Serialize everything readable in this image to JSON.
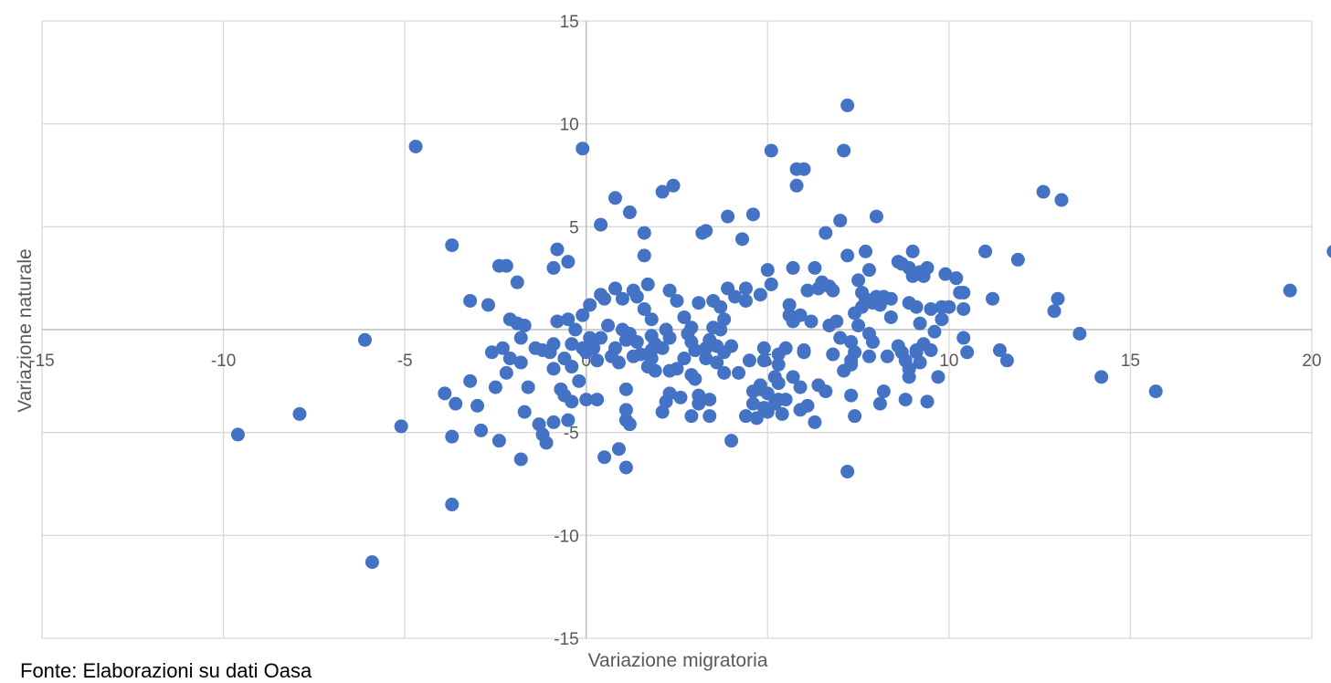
{
  "chart_data": {
    "type": "scatter",
    "xlabel": "Variazione migratoria",
    "ylabel": "Variazione  naturale",
    "xlim": [
      -15,
      20
    ],
    "ylim": [
      -15,
      15
    ],
    "x_ticks": [
      -15,
      -10,
      -5,
      0,
      5,
      10,
      15,
      20
    ],
    "y_ticks": [
      -15,
      -10,
      -5,
      0,
      5,
      10,
      15
    ],
    "grid": true,
    "marker_color": "#4472C4",
    "points": [
      [
        -9.6,
        -5.1
      ],
      [
        -7.9,
        -4.1
      ],
      [
        -6.1,
        -0.5
      ],
      [
        -5.9,
        -11.3
      ],
      [
        -5.1,
        -4.7
      ],
      [
        -4.7,
        8.9
      ],
      [
        -3.9,
        -3.1
      ],
      [
        -3.7,
        4.1
      ],
      [
        -3.7,
        -5.2
      ],
      [
        -3.7,
        -8.5
      ],
      [
        -3.6,
        -3.6
      ],
      [
        -3.2,
        -2.5
      ],
      [
        -3.2,
        1.4
      ],
      [
        -3.0,
        -3.7
      ],
      [
        -2.9,
        -4.9
      ],
      [
        -2.7,
        1.2
      ],
      [
        -2.6,
        -1.1
      ],
      [
        -2.5,
        -2.8
      ],
      [
        -2.4,
        -5.4
      ],
      [
        -2.4,
        3.1
      ],
      [
        -2.3,
        -0.9
      ],
      [
        -2.2,
        3.1
      ],
      [
        -2.2,
        -2.1
      ],
      [
        -2.1,
        0.5
      ],
      [
        -2.1,
        -1.4
      ],
      [
        -1.9,
        0.3
      ],
      [
        -1.8,
        -0.4
      ],
      [
        -1.9,
        2.3
      ],
      [
        -1.8,
        -1.6
      ],
      [
        -1.7,
        0.2
      ],
      [
        -1.8,
        -6.3
      ],
      [
        -1.7,
        -4.0
      ],
      [
        -1.6,
        -2.8
      ],
      [
        -1.4,
        -0.9
      ],
      [
        -1.3,
        -4.6
      ],
      [
        -1.2,
        -1.0
      ],
      [
        -1.2,
        -5.1
      ],
      [
        -1.1,
        -5.5
      ],
      [
        -1.0,
        -1.1
      ],
      [
        -0.9,
        -0.7
      ],
      [
        -0.9,
        -4.5
      ],
      [
        -0.9,
        3.0
      ],
      [
        -0.9,
        -1.9
      ],
      [
        -0.8,
        3.9
      ],
      [
        -0.8,
        0.4
      ],
      [
        -0.7,
        -2.9
      ],
      [
        -0.6,
        -1.4
      ],
      [
        -0.6,
        -3.2
      ],
      [
        -0.5,
        3.3
      ],
      [
        -0.5,
        -4.4
      ],
      [
        -0.5,
        0.5
      ],
      [
        -0.4,
        -0.7
      ],
      [
        -0.4,
        -1.8
      ],
      [
        -0.4,
        -3.5
      ],
      [
        -0.3,
        0.0
      ],
      [
        -0.2,
        -2.5
      ],
      [
        -0.1,
        -0.9
      ],
      [
        -0.1,
        0.7
      ],
      [
        -0.1,
        8.8
      ],
      [
        0.0,
        -3.4
      ],
      [
        0.0,
        -1.1
      ],
      [
        0.1,
        1.2
      ],
      [
        0.1,
        -0.4
      ],
      [
        0.2,
        -0.9
      ],
      [
        0.3,
        -1.5
      ],
      [
        0.3,
        -3.4
      ],
      [
        0.4,
        5.1
      ],
      [
        0.4,
        1.7
      ],
      [
        0.4,
        -0.4
      ],
      [
        0.5,
        -6.2
      ],
      [
        0.5,
        1.5
      ],
      [
        0.6,
        0.2
      ],
      [
        0.7,
        -1.3
      ],
      [
        0.8,
        -0.9
      ],
      [
        0.8,
        2.0
      ],
      [
        0.8,
        6.4
      ],
      [
        0.9,
        -5.8
      ],
      [
        0.9,
        -1.6
      ],
      [
        1.0,
        0.0
      ],
      [
        1.0,
        1.5
      ],
      [
        1.1,
        -4.4
      ],
      [
        1.1,
        -3.9
      ],
      [
        1.1,
        -2.9
      ],
      [
        1.1,
        -0.5
      ],
      [
        1.1,
        -6.7
      ],
      [
        1.2,
        -4.6
      ],
      [
        1.2,
        5.7
      ],
      [
        1.2,
        -0.2
      ],
      [
        1.3,
        1.9
      ],
      [
        1.3,
        -1.3
      ],
      [
        1.4,
        -0.6
      ],
      [
        1.4,
        1.6
      ],
      [
        1.5,
        -1.2
      ],
      [
        1.6,
        4.7
      ],
      [
        1.6,
        1.0
      ],
      [
        1.6,
        3.6
      ],
      [
        1.7,
        2.2
      ],
      [
        1.7,
        -1.8
      ],
      [
        1.8,
        -0.3
      ],
      [
        1.8,
        0.5
      ],
      [
        1.8,
        -1.0
      ],
      [
        1.8,
        -1.4
      ],
      [
        1.9,
        -2.0
      ],
      [
        1.9,
        -0.7
      ],
      [
        2.1,
        -0.9
      ],
      [
        2.1,
        -4.0
      ],
      [
        2.1,
        6.7
      ],
      [
        2.2,
        -3.5
      ],
      [
        2.2,
        0.0
      ],
      [
        2.3,
        -2.0
      ],
      [
        2.3,
        -0.4
      ],
      [
        2.3,
        1.9
      ],
      [
        2.3,
        -3.1
      ],
      [
        2.4,
        7.0
      ],
      [
        2.5,
        1.4
      ],
      [
        2.5,
        -1.9
      ],
      [
        2.6,
        -3.3
      ],
      [
        2.7,
        0.6
      ],
      [
        2.7,
        -1.4
      ],
      [
        2.8,
        -0.2
      ],
      [
        2.9,
        -4.2
      ],
      [
        2.9,
        -2.2
      ],
      [
        2.9,
        -0.6
      ],
      [
        2.9,
        0.1
      ],
      [
        3.0,
        -1.0
      ],
      [
        3.0,
        -2.4
      ],
      [
        3.1,
        -3.2
      ],
      [
        3.1,
        -3.6
      ],
      [
        3.1,
        1.3
      ],
      [
        3.2,
        4.7
      ],
      [
        3.3,
        4.8
      ],
      [
        3.3,
        -1.4
      ],
      [
        3.3,
        -0.9
      ],
      [
        3.4,
        -4.2
      ],
      [
        3.4,
        -3.4
      ],
      [
        3.4,
        -0.5
      ],
      [
        3.5,
        0.1
      ],
      [
        3.5,
        1.4
      ],
      [
        3.6,
        -1.6
      ],
      [
        3.6,
        -0.8
      ],
      [
        3.7,
        1.1
      ],
      [
        3.7,
        0.0
      ],
      [
        3.8,
        -2.1
      ],
      [
        3.8,
        -1.1
      ],
      [
        3.8,
        0.5
      ],
      [
        3.9,
        5.5
      ],
      [
        3.9,
        2.0
      ],
      [
        4.0,
        -5.4
      ],
      [
        4.0,
        -0.8
      ],
      [
        4.1,
        1.6
      ],
      [
        4.2,
        -2.1
      ],
      [
        4.3,
        4.4
      ],
      [
        4.4,
        -4.2
      ],
      [
        4.4,
        2.0
      ],
      [
        4.4,
        1.4
      ],
      [
        4.5,
        -1.5
      ],
      [
        4.6,
        5.6
      ],
      [
        4.6,
        -3.0
      ],
      [
        4.6,
        -3.6
      ],
      [
        4.7,
        -4.3
      ],
      [
        4.8,
        -2.9
      ],
      [
        4.8,
        -2.7
      ],
      [
        4.8,
        1.7
      ],
      [
        4.9,
        -3.8
      ],
      [
        4.9,
        -1.5
      ],
      [
        4.9,
        -0.9
      ],
      [
        5.0,
        -3.1
      ],
      [
        5.0,
        -4.0
      ],
      [
        5.0,
        2.9
      ],
      [
        5.1,
        2.2
      ],
      [
        5.1,
        8.7
      ],
      [
        5.2,
        -2.3
      ],
      [
        5.2,
        -3.6
      ],
      [
        5.3,
        -3.4
      ],
      [
        5.3,
        -1.7
      ],
      [
        5.3,
        -2.6
      ],
      [
        5.3,
        -1.2
      ],
      [
        5.4,
        -4.1
      ],
      [
        5.5,
        -3.4
      ],
      [
        5.5,
        -0.9
      ],
      [
        5.6,
        1.2
      ],
      [
        5.6,
        0.7
      ],
      [
        5.7,
        -2.3
      ],
      [
        5.7,
        3.0
      ],
      [
        5.7,
        0.4
      ],
      [
        5.8,
        7.8
      ],
      [
        5.8,
        7.0
      ],
      [
        5.9,
        -3.9
      ],
      [
        5.9,
        -2.8
      ],
      [
        5.9,
        0.7
      ],
      [
        6.0,
        7.8
      ],
      [
        6.0,
        -1.0
      ],
      [
        6.0,
        -1.1
      ],
      [
        6.1,
        -3.7
      ],
      [
        6.1,
        1.9
      ],
      [
        6.2,
        0.4
      ],
      [
        6.3,
        -4.5
      ],
      [
        6.3,
        3.0
      ],
      [
        6.4,
        -2.7
      ],
      [
        6.4,
        2.0
      ],
      [
        6.5,
        2.3
      ],
      [
        6.6,
        -3.0
      ],
      [
        6.6,
        4.7
      ],
      [
        6.7,
        0.2
      ],
      [
        6.7,
        2.1
      ],
      [
        6.8,
        1.9
      ],
      [
        6.8,
        -1.2
      ],
      [
        6.9,
        0.4
      ],
      [
        7.0,
        -0.4
      ],
      [
        7.0,
        5.3
      ],
      [
        7.1,
        8.7
      ],
      [
        7.1,
        -2.0
      ],
      [
        7.2,
        -6.9
      ],
      [
        7.2,
        10.9
      ],
      [
        7.2,
        3.6
      ],
      [
        7.3,
        -3.2
      ],
      [
        7.3,
        -1.7
      ],
      [
        7.3,
        -0.6
      ],
      [
        7.3,
        -1.5
      ],
      [
        7.4,
        -4.2
      ],
      [
        7.4,
        0.8
      ],
      [
        7.4,
        -1.1
      ],
      [
        7.5,
        0.2
      ],
      [
        7.5,
        2.4
      ],
      [
        7.6,
        1.8
      ],
      [
        7.6,
        1.1
      ],
      [
        7.7,
        3.8
      ],
      [
        7.7,
        1.5
      ],
      [
        7.8,
        -0.2
      ],
      [
        7.8,
        -1.3
      ],
      [
        7.8,
        2.9
      ],
      [
        7.9,
        1.3
      ],
      [
        7.9,
        -0.6
      ],
      [
        8.0,
        5.5
      ],
      [
        8.0,
        1.6
      ],
      [
        8.1,
        -3.6
      ],
      [
        8.1,
        1.2
      ],
      [
        8.2,
        1.6
      ],
      [
        8.2,
        -3.0
      ],
      [
        8.3,
        -1.3
      ],
      [
        8.4,
        0.6
      ],
      [
        8.4,
        1.5
      ],
      [
        8.6,
        -0.8
      ],
      [
        8.6,
        3.3
      ],
      [
        8.7,
        -1.1
      ],
      [
        8.7,
        3.2
      ],
      [
        8.8,
        -1.5
      ],
      [
        8.8,
        -3.4
      ],
      [
        8.9,
        -2.3
      ],
      [
        8.9,
        1.3
      ],
      [
        8.9,
        -1.9
      ],
      [
        8.9,
        3.0
      ],
      [
        9.0,
        3.8
      ],
      [
        9.0,
        2.6
      ],
      [
        9.1,
        -1.1
      ],
      [
        9.1,
        -1.0
      ],
      [
        9.1,
        1.1
      ],
      [
        9.2,
        -1.6
      ],
      [
        9.2,
        2.8
      ],
      [
        9.2,
        0.3
      ],
      [
        9.3,
        -0.7
      ],
      [
        9.3,
        2.6
      ],
      [
        9.4,
        -3.5
      ],
      [
        9.4,
        3.0
      ],
      [
        9.5,
        1.0
      ],
      [
        9.5,
        -1.0
      ],
      [
        9.6,
        -0.1
      ],
      [
        9.7,
        -2.3
      ],
      [
        9.8,
        1.1
      ],
      [
        9.8,
        0.5
      ],
      [
        9.9,
        2.7
      ],
      [
        10.0,
        1.1
      ],
      [
        10.2,
        2.5
      ],
      [
        10.3,
        1.8
      ],
      [
        10.4,
        -0.4
      ],
      [
        10.4,
        1.8
      ],
      [
        10.4,
        1.0
      ],
      [
        10.5,
        -1.1
      ],
      [
        11.0,
        3.8
      ],
      [
        11.2,
        1.5
      ],
      [
        11.4,
        -1.0
      ],
      [
        11.6,
        -1.5
      ],
      [
        11.9,
        3.4
      ],
      [
        12.6,
        6.7
      ],
      [
        13.1,
        6.3
      ],
      [
        12.9,
        0.9
      ],
      [
        13.0,
        1.5
      ],
      [
        13.6,
        -0.2
      ],
      [
        14.2,
        -2.3
      ],
      [
        15.7,
        -3.0
      ],
      [
        19.4,
        1.9
      ],
      [
        20.6,
        3.8
      ]
    ]
  },
  "source_note": "Fonte: Elaborazioni su dati Oasa"
}
